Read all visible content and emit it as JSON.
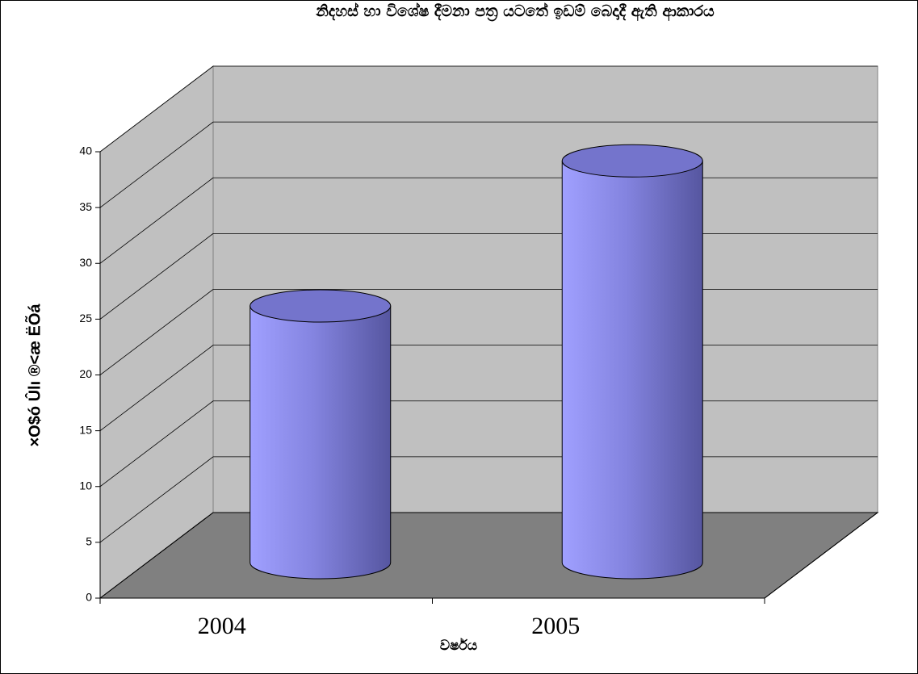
{
  "chart_data": {
    "type": "cylinder",
    "title": "නිදහස් හා විශේෂ දීමනා පත්‍ර යටතේ ඉඩම් බෙදාදී ඇති ආකාරය",
    "x_label": "වර්ෂය",
    "y_label": "×O$ó Ûlı ®<æ ËÕá",
    "categories": [
      "2004",
      "2005"
    ],
    "values": [
      23,
      36
    ],
    "color": "#8080e0",
    "ylim": [
      0,
      40
    ],
    "yticks": [
      0,
      5,
      10,
      15,
      20,
      25,
      30,
      35,
      40
    ],
    "grid": true
  }
}
